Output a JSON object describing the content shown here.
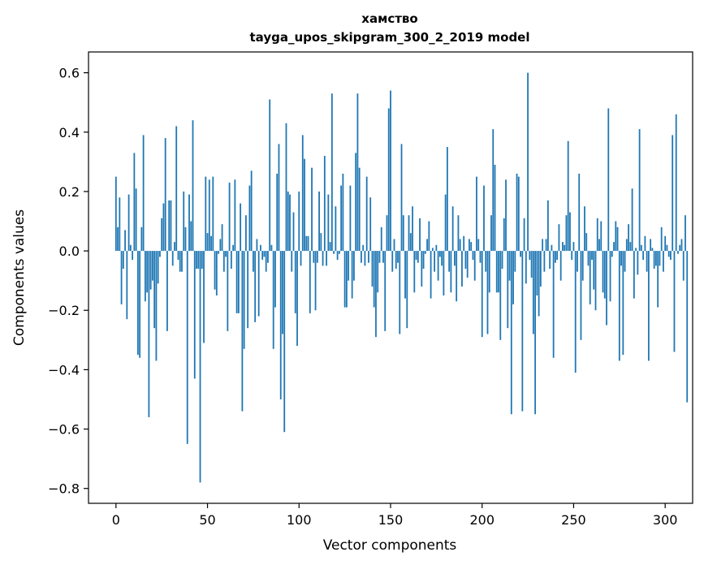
{
  "chart_data": {
    "type": "bar",
    "title_line1": "хамство",
    "title_line2": "tayga_upos_skipgram_300_2_2019 model",
    "xlabel": "Vector components",
    "ylabel": "Components values",
    "xlim": [
      -15,
      315
    ],
    "ylim": [
      -0.85,
      0.67
    ],
    "x_ticks": [
      0,
      50,
      100,
      150,
      200,
      250,
      300
    ],
    "x_tick_labels": [
      "0",
      "50",
      "100",
      "150",
      "200",
      "250",
      "300"
    ],
    "y_ticks": [
      -0.8,
      -0.6,
      -0.4,
      -0.2,
      0.0,
      0.2,
      0.4,
      0.6
    ],
    "y_tick_labels": [
      "−0.8",
      "−0.6",
      "−0.4",
      "−0.2",
      "0.0",
      "0.2",
      "0.4",
      "0.6"
    ],
    "bar_color": "#1f77b4",
    "grid": false,
    "values": [
      0.25,
      0.08,
      0.18,
      -0.18,
      -0.06,
      0.07,
      -0.23,
      0.19,
      0.02,
      -0.03,
      0.33,
      0.21,
      -0.35,
      -0.36,
      0.08,
      0.39,
      -0.17,
      -0.14,
      -0.56,
      -0.13,
      -0.1,
      -0.26,
      -0.37,
      -0.11,
      -0.02,
      0.11,
      0.16,
      0.38,
      -0.27,
      0.17,
      0.17,
      -0.05,
      0.03,
      0.42,
      -0.03,
      -0.07,
      -0.07,
      0.2,
      0.08,
      -0.65,
      0.19,
      0.1,
      0.44,
      -0.43,
      -0.06,
      -0.06,
      -0.78,
      -0.06,
      -0.31,
      0.25,
      0.06,
      0.24,
      0.05,
      0.25,
      -0.13,
      -0.15,
      -0.01,
      0.04,
      0.09,
      -0.07,
      -0.02,
      -0.27,
      0.23,
      -0.06,
      0.02,
      0.24,
      -0.21,
      -0.21,
      0.16,
      -0.54,
      -0.33,
      0.12,
      -0.26,
      0.22,
      0.27,
      -0.07,
      -0.24,
      0.04,
      -0.22,
      0.02,
      -0.03,
      -0.02,
      -0.07,
      -0.04,
      0.51,
      0.02,
      -0.33,
      -0.19,
      0.26,
      0.36,
      -0.5,
      -0.28,
      -0.61,
      0.43,
      0.2,
      0.19,
      -0.07,
      0.13,
      -0.21,
      -0.32,
      0.2,
      -0.05,
      0.39,
      0.31,
      0.05,
      0.05,
      -0.21,
      0.28,
      -0.04,
      -0.2,
      -0.04,
      0.2,
      0.06,
      -0.05,
      0.32,
      -0.05,
      0.19,
      0.03,
      0.53,
      -0.01,
      0.15,
      -0.03,
      -0.01,
      0.22,
      0.26,
      -0.19,
      -0.19,
      -0.1,
      0.22,
      -0.16,
      -0.1,
      0.33,
      0.53,
      0.28,
      -0.04,
      0.02,
      -0.05,
      0.25,
      -0.04,
      0.18,
      -0.12,
      -0.19,
      -0.29,
      -0.14,
      -0.04,
      0.08,
      -0.04,
      -0.27,
      0.12,
      0.48,
      0.54,
      -0.07,
      0.04,
      -0.06,
      -0.04,
      -0.28,
      0.36,
      0.12,
      -0.16,
      -0.26,
      0.12,
      0.06,
      0.15,
      -0.14,
      -0.03,
      -0.04,
      0.11,
      -0.12,
      -0.06,
      -0.01,
      0.04,
      0.1,
      -0.16,
      0.01,
      -0.07,
      0.02,
      -0.1,
      -0.02,
      -0.05,
      -0.15,
      0.19,
      0.35,
      -0.07,
      -0.14,
      0.15,
      -0.05,
      -0.17,
      0.12,
      0.04,
      -0.12,
      0.05,
      -0.06,
      -0.09,
      0.04,
      0.03,
      -0.03,
      -0.1,
      0.25,
      0.04,
      -0.04,
      -0.29,
      0.22,
      -0.07,
      -0.28,
      -0.14,
      0.12,
      0.41,
      0.29,
      -0.14,
      -0.14,
      -0.3,
      -0.06,
      0.11,
      0.24,
      -0.26,
      -0.1,
      -0.55,
      -0.18,
      -0.07,
      0.26,
      0.25,
      -0.02,
      -0.54,
      0.11,
      -0.11,
      0.6,
      -0.03,
      -0.09,
      -0.28,
      -0.55,
      -0.15,
      -0.22,
      -0.12,
      0.04,
      -0.07,
      0.04,
      0.17,
      -0.06,
      0.02,
      -0.36,
      -0.04,
      -0.03,
      0.09,
      -0.1,
      0.03,
      0.02,
      0.12,
      0.37,
      0.13,
      -0.03,
      0.03,
      -0.41,
      -0.07,
      0.26,
      -0.3,
      -0.1,
      0.15,
      0.06,
      -0.05,
      -0.18,
      -0.03,
      -0.13,
      -0.2,
      0.11,
      0.04,
      0.1,
      -0.14,
      -0.16,
      -0.25,
      0.48,
      -0.17,
      -0.02,
      0.03,
      0.1,
      0.08,
      -0.37,
      -0.05,
      -0.35,
      -0.07,
      0.04,
      0.09,
      0.03,
      0.21,
      -0.16,
      0.01,
      -0.08,
      0.41,
      0.02,
      -0.03,
      0.05,
      -0.07,
      -0.37,
      0.04,
      0.01,
      -0.06,
      -0.05,
      -0.19,
      -0.05,
      0.08,
      -0.07,
      0.05,
      0.02,
      -0.02,
      -0.03,
      0.39,
      -0.34,
      0.46,
      -0.01,
      0.02,
      0.04,
      -0.1,
      0.12,
      -0.51
    ]
  }
}
